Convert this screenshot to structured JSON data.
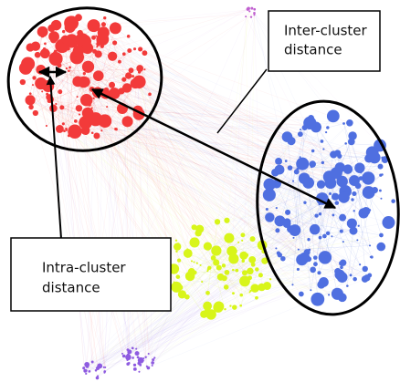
{
  "labels": [
    {
      "lines": [
        "Inter-cluster",
        "distance"
      ]
    },
    {
      "lines": [
        "Intra-cluster",
        "distance"
      ]
    }
  ]
}
